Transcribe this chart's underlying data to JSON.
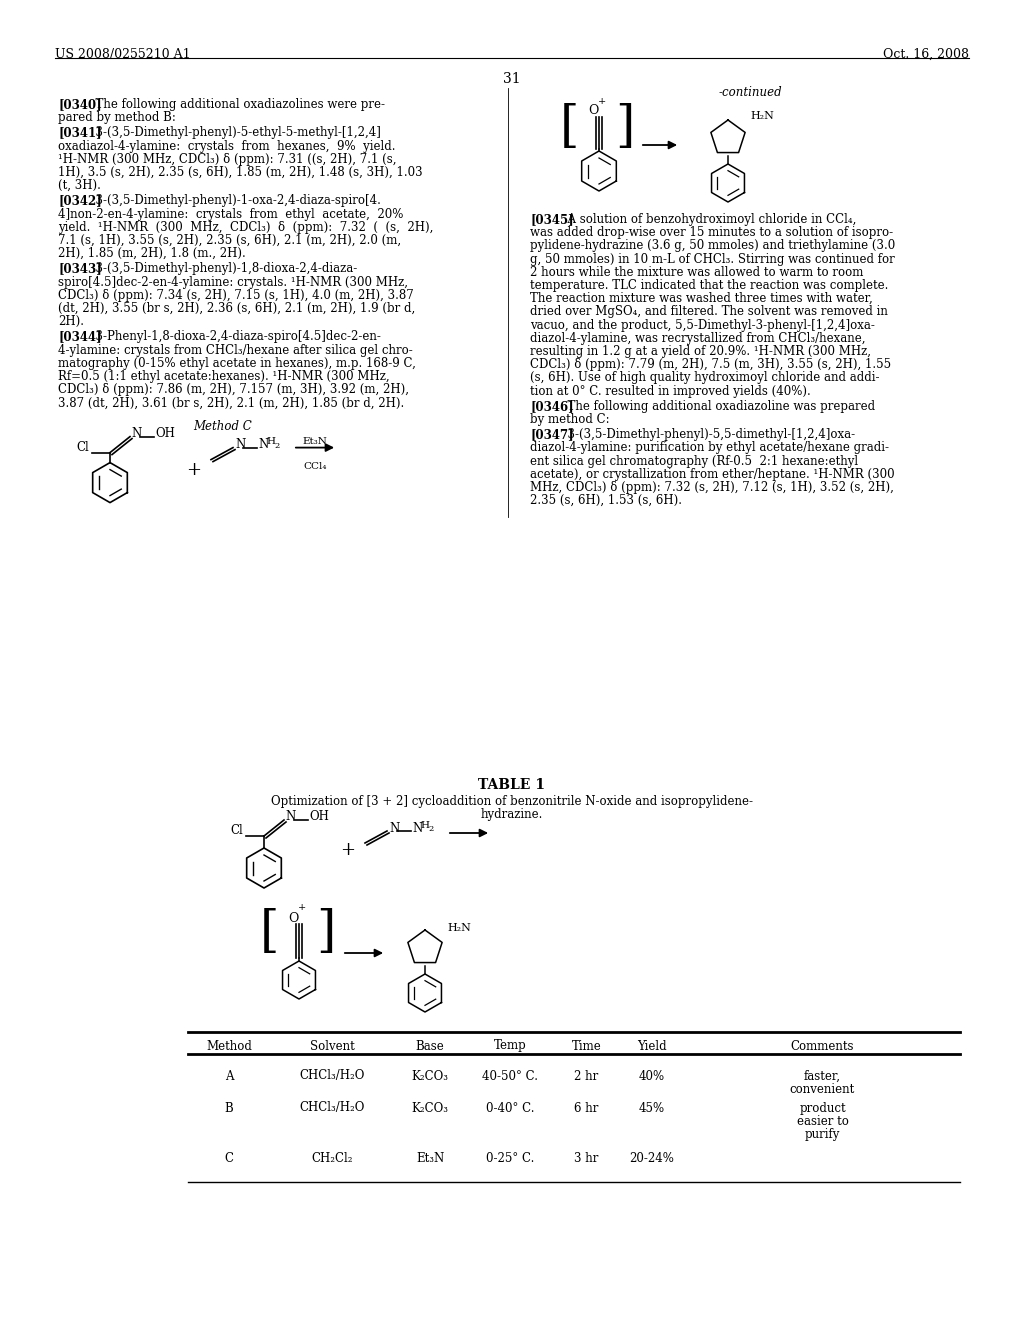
{
  "bg_color": "#ffffff",
  "header_left": "US 2008/0255210 A1",
  "header_right": "Oct. 16, 2008",
  "page_number": "31"
}
